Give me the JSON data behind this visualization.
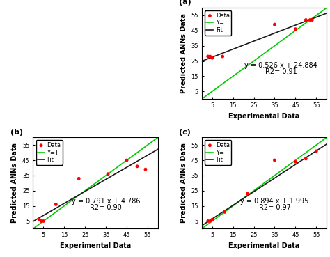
{
  "panel_a": {
    "label": "(a)",
    "data_x": [
      3,
      4,
      5,
      10,
      35,
      45,
      50,
      52,
      53
    ],
    "data_y": [
      28,
      28,
      27,
      28,
      49,
      46,
      52,
      52,
      52
    ],
    "fit_slope": 0.526,
    "fit_intercept": 24.884,
    "r2": 0.91,
    "equation": "y = 0.526 x + 24.884",
    "r2_text": "R2= 0.91",
    "xlim": [
      0,
      60
    ],
    "ylim": [
      0,
      60
    ],
    "xticks": [
      0,
      5,
      10,
      15,
      20,
      25,
      30,
      35,
      40,
      45,
      50,
      55,
      60
    ],
    "yticks": [
      0,
      5,
      10,
      15,
      20,
      25,
      30,
      35,
      40,
      45,
      50,
      55,
      60
    ],
    "xlabel": "Experimental Data",
    "ylabel": "Predicted ANNs Data",
    "eq_x": 38,
    "eq_y": 18
  },
  "panel_b": {
    "label": "(b)",
    "data_x": [
      3,
      4,
      5,
      11,
      22,
      36,
      45,
      50,
      54
    ],
    "data_y": [
      6,
      5,
      5,
      16,
      33,
      36,
      45,
      41,
      39
    ],
    "fit_slope": 0.791,
    "fit_intercept": 4.786,
    "r2": 0.9,
    "equation": "y = 0.791 x + 4.786",
    "r2_text": "R2= 0.90",
    "xlim": [
      0,
      60
    ],
    "ylim": [
      0,
      60
    ],
    "xticks": [
      0,
      5,
      10,
      15,
      20,
      25,
      30,
      35,
      40,
      45,
      50,
      55,
      60
    ],
    "yticks": [
      0,
      5,
      10,
      15,
      20,
      25,
      30,
      35,
      40,
      45,
      50,
      55,
      60
    ],
    "xlabel": "Experimental Data",
    "ylabel": "Predicted ANNs Data",
    "eq_x": 35,
    "eq_y": 14
  },
  "panel_c": {
    "label": "(c)",
    "data_x": [
      3,
      4,
      5,
      11,
      22,
      35,
      45,
      50,
      55
    ],
    "data_y": [
      5,
      5,
      6,
      11,
      23,
      45,
      44,
      46,
      51
    ],
    "fit_slope": 0.894,
    "fit_intercept": 1.995,
    "r2": 0.97,
    "equation": "y = 0.894 x + 1.995",
    "r2_text": "R2= 0.97",
    "xlim": [
      0,
      60
    ],
    "ylim": [
      0,
      60
    ],
    "xticks": [
      0,
      5,
      10,
      15,
      20,
      25,
      30,
      35,
      40,
      45,
      50,
      55,
      60
    ],
    "yticks": [
      0,
      5,
      10,
      15,
      20,
      25,
      30,
      35,
      40,
      45,
      50,
      55,
      60
    ],
    "xlabel": "Experimental Data",
    "ylabel": "Predicted ANNs Data",
    "eq_x": 35,
    "eq_y": 14
  },
  "data_color": "#FF0000",
  "fit_color": "#1a1a1a",
  "yt_color": "#00CC00",
  "data_markersize": 3.5,
  "legend_fontsize": 6,
  "tick_fontsize": 6,
  "label_fontsize": 7,
  "eq_fontsize": 7,
  "panel_label_fontsize": 8,
  "background_color": "#ffffff"
}
